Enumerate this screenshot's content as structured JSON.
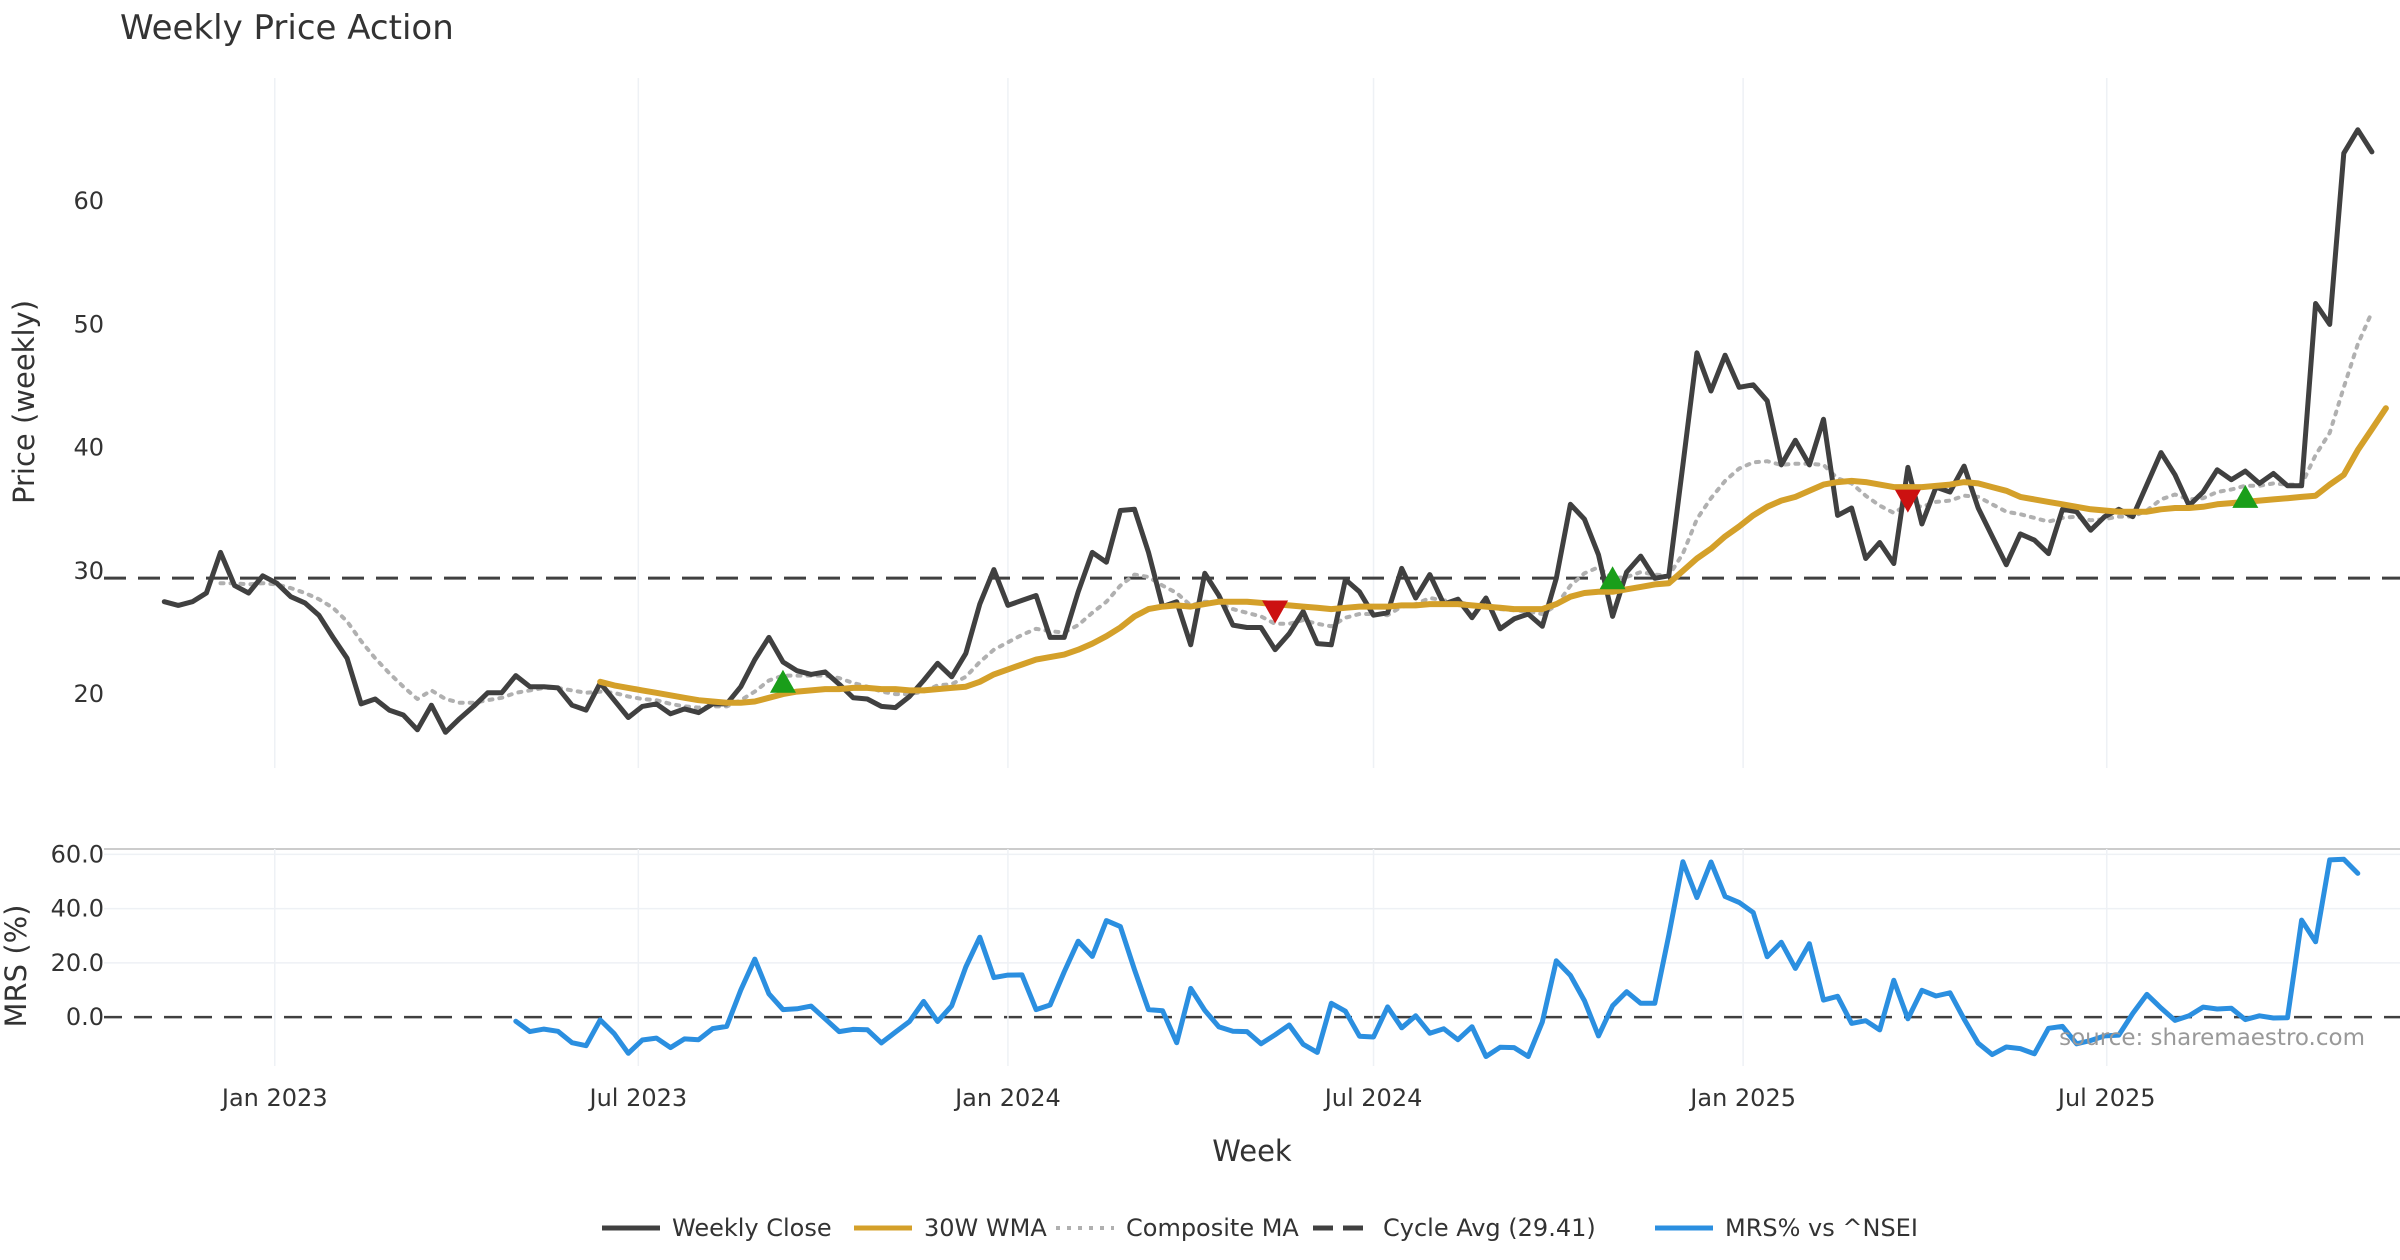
{
  "chart_data": [
    {
      "type": "line",
      "title": "Weekly Price Action",
      "ylabel": "Price (weekly)",
      "ylim": [
        14,
        70
      ],
      "yticks": [
        "20",
        "30",
        "40",
        "50",
        "60"
      ],
      "ytick_values": [
        20,
        30,
        40,
        50,
        60
      ],
      "x_start": "2022-11-07",
      "x_end": "2025-11-24",
      "x_ticks": [
        "Jan 2023",
        "Jul 2023",
        "Jan 2024",
        "Jul 2024",
        "Jan 2025",
        "Jul 2025"
      ],
      "x_tick_dates": [
        "2023-01-01",
        "2023-07-01",
        "2024-01-01",
        "2024-07-01",
        "2025-01-01",
        "2025-07-01"
      ],
      "grid": "vertical",
      "series": [
        {
          "name": "Weekly Close",
          "color": "#404040",
          "style": "solid",
          "values": [
            27.5,
            27.2,
            27.5,
            28.2,
            31.5,
            28.8,
            28.2,
            29.6,
            29.0,
            27.9,
            27.4,
            26.4,
            24.6,
            22.9,
            19.2,
            19.6,
            18.7,
            18.3,
            17.1,
            19.1,
            16.9,
            18.0,
            19.0,
            20.1,
            20.1,
            21.5,
            20.6,
            20.6,
            20.5,
            19.1,
            18.7,
            20.9,
            19.5,
            18.1,
            19.0,
            19.2,
            18.4,
            18.8,
            18.5,
            19.2,
            19.2,
            20.6,
            22.8,
            24.6,
            22.6,
            21.9,
            21.6,
            21.8,
            20.8,
            19.7,
            19.6,
            19.0,
            18.9,
            19.8,
            21.1,
            22.5,
            21.4,
            23.3,
            27.3,
            30.1,
            27.2,
            27.6,
            28.0,
            24.6,
            24.6,
            28.3,
            31.5,
            30.7,
            34.9,
            35.0,
            31.5,
            27.1,
            27.5,
            24.0,
            29.8,
            28.0,
            25.6,
            25.4,
            25.4,
            23.6,
            24.9,
            26.7,
            24.1,
            24.0,
            29.3,
            28.3,
            26.4,
            26.6,
            30.2,
            27.8,
            29.7,
            27.3,
            27.7,
            26.2,
            27.8,
            25.3,
            26.1,
            26.5,
            25.5,
            29.4,
            35.4,
            34.2,
            31.3,
            26.3,
            29.9,
            31.2,
            29.4,
            29.6,
            38.6,
            47.7,
            44.6,
            47.5,
            44.9,
            45.1,
            43.8,
            38.6,
            40.6,
            38.6,
            42.3,
            34.5,
            35.1,
            31.0,
            32.3,
            30.6,
            38.4,
            33.8,
            36.8,
            36.4,
            38.5,
            35.1,
            32.8,
            30.5,
            33.0,
            32.5,
            31.4,
            35.0,
            34.8,
            33.3,
            34.4,
            35.0,
            34.4,
            37.0,
            39.6,
            37.8,
            35.3,
            36.4,
            38.2,
            37.4,
            38.1,
            37.1,
            37.9,
            36.9,
            36.9,
            51.7,
            50.0,
            63.9,
            65.8,
            64.0
          ]
        },
        {
          "name": "30W WMA",
          "color": "#d4a02a",
          "style": "solid",
          "values": [
            null,
            null,
            null,
            null,
            null,
            null,
            null,
            null,
            null,
            null,
            null,
            null,
            null,
            null,
            null,
            null,
            null,
            null,
            null,
            null,
            null,
            null,
            null,
            null,
            null,
            null,
            null,
            null,
            null,
            null,
            null,
            21.0,
            20.7,
            20.5,
            20.3,
            20.1,
            19.9,
            19.7,
            19.5,
            19.4,
            19.3,
            19.3,
            19.4,
            19.7,
            20.0,
            20.2,
            20.3,
            20.4,
            20.4,
            20.5,
            20.5,
            20.4,
            20.4,
            20.3,
            20.3,
            20.4,
            20.5,
            20.6,
            21.0,
            21.6,
            22.0,
            22.4,
            22.8,
            23.0,
            23.2,
            23.6,
            24.1,
            24.7,
            25.4,
            26.3,
            26.9,
            27.1,
            27.2,
            27.1,
            27.3,
            27.5,
            27.5,
            27.5,
            27.4,
            27.3,
            27.2,
            27.1,
            27.0,
            26.9,
            27.0,
            27.1,
            27.1,
            27.1,
            27.2,
            27.2,
            27.3,
            27.3,
            27.3,
            27.2,
            27.1,
            27.0,
            26.9,
            26.9,
            26.9,
            27.3,
            27.9,
            28.2,
            28.3,
            28.3,
            28.5,
            28.7,
            28.9,
            29.0,
            30.0,
            31.0,
            31.8,
            32.8,
            33.6,
            34.5,
            35.2,
            35.7,
            36.0,
            36.5,
            37.0,
            37.2,
            37.3,
            37.2,
            37.0,
            36.8,
            36.8,
            36.8,
            36.9,
            37.0,
            37.2,
            37.1,
            36.8,
            36.5,
            36.0,
            35.8,
            35.6,
            35.4,
            35.2,
            35.0,
            34.9,
            34.8,
            34.8,
            34.8,
            35.0,
            35.1,
            35.1,
            35.2,
            35.4,
            35.5,
            35.6,
            35.7,
            35.8,
            35.9,
            36.0,
            36.1,
            37.0,
            37.8,
            39.8,
            41.5,
            43.2
          ]
        },
        {
          "name": "Composite MA",
          "color": "#b0b0b0",
          "style": "dotted",
          "values": [
            null,
            null,
            null,
            null,
            29.0,
            29.0,
            28.9,
            29.0,
            28.9,
            28.6,
            28.2,
            27.7,
            27.0,
            25.9,
            24.3,
            22.9,
            21.7,
            20.6,
            19.6,
            20.3,
            19.6,
            19.3,
            19.3,
            19.5,
            19.7,
            20.1,
            20.3,
            20.5,
            20.5,
            20.3,
            20.1,
            20.2,
            20.1,
            19.8,
            19.6,
            19.5,
            19.2,
            19.0,
            18.9,
            19.0,
            19.0,
            19.5,
            20.2,
            21.1,
            21.5,
            21.5,
            21.5,
            21.5,
            21.3,
            20.9,
            20.6,
            20.2,
            20.0,
            20.0,
            20.2,
            20.7,
            20.8,
            21.4,
            22.6,
            23.6,
            24.2,
            24.8,
            25.3,
            25.1,
            25.0,
            25.6,
            26.6,
            27.5,
            28.8,
            29.7,
            29.5,
            28.8,
            28.2,
            27.2,
            27.5,
            27.4,
            26.9,
            26.6,
            26.3,
            25.7,
            25.7,
            26.0,
            25.7,
            25.5,
            26.2,
            26.5,
            26.5,
            26.4,
            27.1,
            27.3,
            27.8,
            27.6,
            27.5,
            27.2,
            27.3,
            26.9,
            26.8,
            26.7,
            26.5,
            27.2,
            28.8,
            29.8,
            30.3,
            29.4,
            29.5,
            29.9,
            29.7,
            29.6,
            31.4,
            34.2,
            35.9,
            37.3,
            38.3,
            38.8,
            38.9,
            38.6,
            38.7,
            38.7,
            38.6,
            37.5,
            37.1,
            36.1,
            35.3,
            34.7,
            35.4,
            35.2,
            35.6,
            35.7,
            36.1,
            36.0,
            35.4,
            34.8,
            34.6,
            34.3,
            34.0,
            34.3,
            34.4,
            34.1,
            34.2,
            34.4,
            34.4,
            34.9,
            35.8,
            36.2,
            35.8,
            35.9,
            36.4,
            36.6,
            36.9,
            36.9,
            37.1,
            37.0,
            37.0,
            39.4,
            41.2,
            44.9,
            48.4,
            51.0
          ]
        },
        {
          "name": "Cycle Avg (29.41)",
          "color": "#404040",
          "style": "dashed",
          "constant": 29.41
        }
      ],
      "markers": [
        {
          "type": "buy",
          "color": "#1a9e1a",
          "index": 44,
          "y": 21.0
        },
        {
          "type": "sell",
          "color": "#cc1111",
          "index": 79,
          "y": 26.7
        },
        {
          "type": "buy",
          "color": "#1a9e1a",
          "index": 103,
          "y": 29.4
        },
        {
          "type": "sell",
          "color": "#cc1111",
          "index": 124,
          "y": 35.7
        },
        {
          "type": "buy",
          "color": "#1a9e1a",
          "index": 148,
          "y": 36.0
        }
      ]
    },
    {
      "type": "line",
      "xlabel": "Week",
      "ylabel": "MRS (%)",
      "ylim": [
        -18,
        62
      ],
      "yticks": [
        "60.0",
        "40.0",
        "20.0",
        "0.0"
      ],
      "ytick_values": [
        60,
        40,
        20,
        0
      ],
      "grid": "both",
      "annotation": "source: sharemaestro.com",
      "series": [
        {
          "name": "MRS% vs ^NSEI",
          "color": "#2b8fe0",
          "style": "solid",
          "values": [
            null,
            null,
            null,
            null,
            null,
            null,
            null,
            null,
            null,
            null,
            null,
            null,
            null,
            null,
            null,
            null,
            null,
            null,
            null,
            null,
            null,
            null,
            null,
            null,
            null,
            -1.5,
            -5.3,
            -4.4,
            -5.2,
            -9.4,
            -10.5,
            -1.0,
            -6.1,
            -13.3,
            -8.4,
            -7.7,
            -11.2,
            -8.0,
            -8.3,
            -4.2,
            -3.4,
            10.0,
            21.4,
            8.6,
            2.8,
            3.1,
            4.1,
            -0.6,
            -5.3,
            -4.5,
            -4.6,
            -9.5,
            -5.5,
            -1.6,
            5.8,
            -1.6,
            4.2,
            18.5,
            29.5,
            14.6,
            15.5,
            15.6,
            2.8,
            4.5,
            16.7,
            28.0,
            22.4,
            35.6,
            33.4,
            17.5,
            2.8,
            2.4,
            -9.4,
            10.6,
            2.5,
            -3.6,
            -5.2,
            -5.3,
            -9.8,
            -6.5,
            -2.9,
            -10.0,
            -13.0,
            5.1,
            2.2,
            -7.0,
            -7.3,
            3.8,
            -3.9,
            0.5,
            -5.9,
            -4.3,
            -8.3,
            -3.5,
            -14.5,
            -11.1,
            -11.2,
            -14.5,
            -1.8,
            20.8,
            15.4,
            6.1,
            -6.9,
            4.2,
            9.4,
            5.1,
            5.1,
            30.2,
            57.3,
            44.1,
            57.2,
            44.5,
            42.3,
            38.6,
            22.3,
            27.6,
            18.0,
            27.1,
            6.3,
            7.7,
            -2.3,
            -1.3,
            -4.7,
            13.6,
            -0.6,
            9.9,
            7.8,
            9.0,
            -0.7,
            -9.6,
            -13.8,
            -11.0,
            -11.6,
            -13.5,
            -4.1,
            -3.4,
            -9.8,
            -8.6,
            -6.9,
            -6.6,
            1.4,
            8.4,
            3.4,
            -1.2,
            0.5,
            3.7,
            3.0,
            3.3,
            -0.9,
            0.5,
            -0.3,
            -0.2,
            35.8,
            27.8,
            58.0,
            58.2,
            53.0
          ]
        }
      ]
    }
  ],
  "legend": [
    {
      "label": "Weekly Close",
      "color": "#404040",
      "style": "solid"
    },
    {
      "label": "30W WMA",
      "color": "#d4a02a",
      "style": "solid"
    },
    {
      "label": "Composite MA",
      "color": "#b0b0b0",
      "style": "dotted"
    },
    {
      "label": "Cycle Avg (29.41)",
      "color": "#404040",
      "style": "dashed"
    },
    {
      "label": "MRS% vs ^NSEI",
      "color": "#2b8fe0",
      "style": "solid"
    }
  ]
}
